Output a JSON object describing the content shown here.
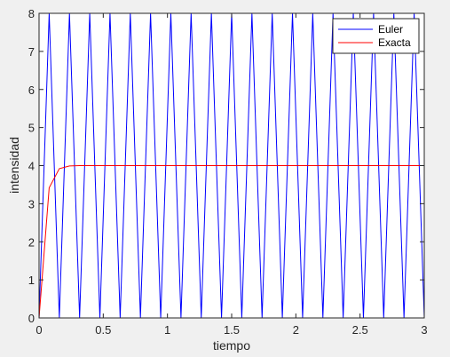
{
  "chart_data": {
    "type": "line",
    "title": "",
    "xlabel": "tiempo",
    "ylabel": "intensidad",
    "xlim": [
      0,
      3
    ],
    "ylim": [
      0,
      8
    ],
    "xticks": [
      0,
      0.5,
      1,
      1.5,
      2,
      2.5,
      3
    ],
    "xtick_labels": [
      "0",
      "0.5",
      "1",
      "1.5",
      "2",
      "2.5",
      "3"
    ],
    "yticks": [
      0,
      1,
      2,
      3,
      4,
      5,
      6,
      7,
      8
    ],
    "ytick_labels": [
      "0",
      "1",
      "2",
      "3",
      "4",
      "5",
      "6",
      "7",
      "8"
    ],
    "grid": false,
    "legend_position": "top-right",
    "series": [
      {
        "name": "Euler",
        "color": "#0000ff",
        "x": [
          0,
          0.0789,
          0.1579,
          0.2368,
          0.3158,
          0.3947,
          0.4737,
          0.5526,
          0.6316,
          0.7105,
          0.7895,
          0.8684,
          0.9474,
          1.0263,
          1.1053,
          1.1842,
          1.2632,
          1.3421,
          1.4211,
          1.5,
          1.5789,
          1.6579,
          1.7368,
          1.8158,
          1.8947,
          1.9737,
          2.0526,
          2.1316,
          2.2105,
          2.2895,
          2.3684,
          2.4474,
          2.5263,
          2.6053,
          2.6842,
          2.7632,
          2.8421,
          2.9211,
          3.0
        ],
        "y": [
          0,
          8,
          0,
          8,
          0,
          8,
          0,
          8,
          0,
          8,
          0,
          8,
          0,
          8,
          0,
          8,
          0,
          8,
          0,
          8,
          0,
          8,
          0,
          8,
          0,
          8,
          0,
          8,
          0,
          8,
          0,
          8,
          0,
          8,
          0,
          8,
          0,
          8,
          0
        ]
      },
      {
        "name": "Exacta",
        "color": "#ff0000",
        "x": [
          0,
          0.0789,
          0.1579,
          0.2368,
          0.3158,
          0.3947,
          0.4737,
          0.5526,
          0.6316,
          0.7105,
          0.7895,
          0.8684,
          0.9474,
          1.0263,
          1.1053,
          1.1842,
          1.2632,
          1.3421,
          1.4211,
          1.5,
          1.5789,
          1.6579,
          1.7368,
          1.8158,
          1.8947,
          1.9737,
          2.0526,
          2.1316,
          2.2105,
          2.2895,
          2.3684,
          2.4474,
          2.5263,
          2.6053,
          2.6842,
          2.7632,
          2.8421,
          2.9211,
          3.0
        ],
        "y": [
          0,
          3.42,
          3.92,
          3.99,
          4.0,
          4.0,
          4.0,
          4.0,
          4.0,
          4.0,
          4.0,
          4.0,
          4.0,
          4.0,
          4.0,
          4.0,
          4.0,
          4.0,
          4.0,
          4.0,
          4.0,
          4.0,
          4.0,
          4.0,
          4.0,
          4.0,
          4.0,
          4.0,
          4.0,
          4.0,
          4.0,
          4.0,
          4.0,
          4.0,
          4.0,
          4.0,
          4.0,
          4.0,
          4.0
        ]
      }
    ]
  }
}
